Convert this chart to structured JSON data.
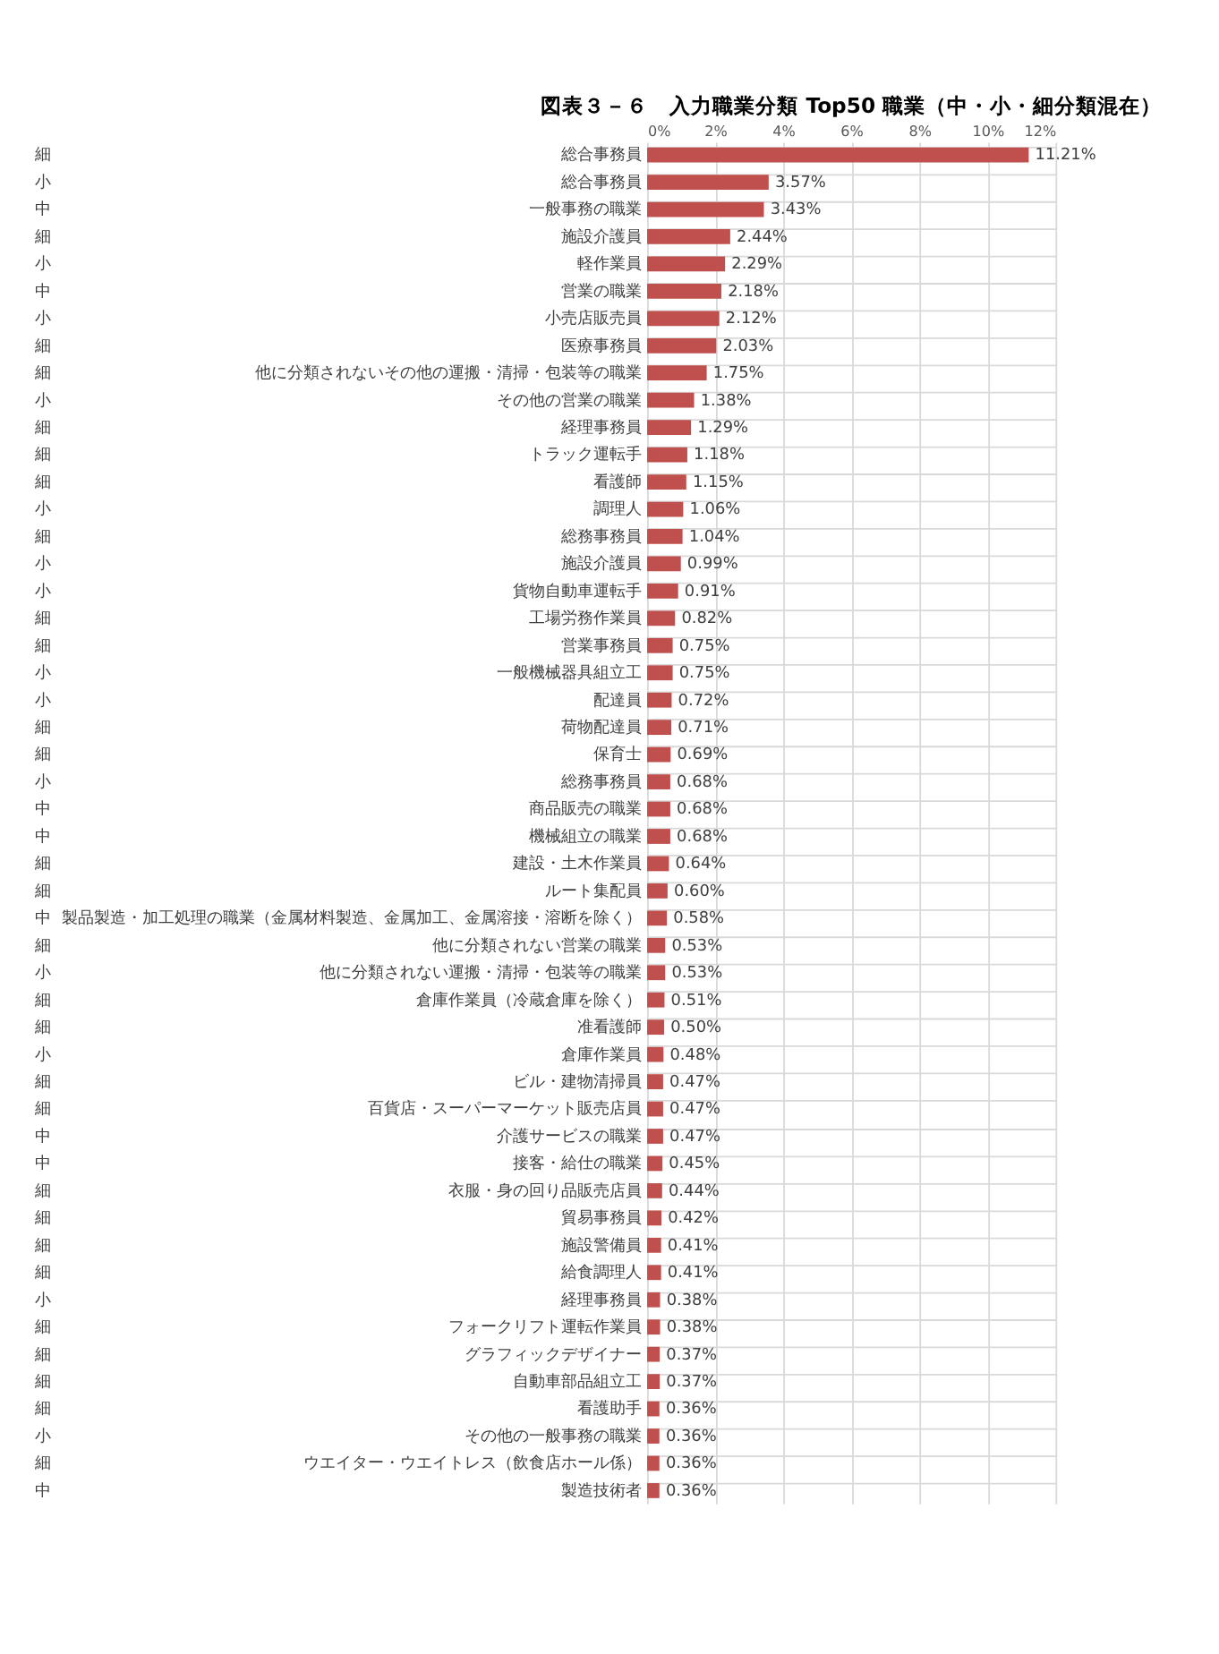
{
  "chart_data": {
    "type": "bar",
    "orientation": "horizontal",
    "title": "図表３－６　入力職業分類 Top50 職業（中・小・細分類混在）",
    "categories": [
      "総合事務員",
      "総合事務員",
      "一般事務の職業",
      "施設介護員",
      "軽作業員",
      "営業の職業",
      "小売店販売員",
      "医療事務員",
      "他に分類されないその他の運搬・清掃・包装等の職業",
      "その他の営業の職業",
      "経理事務員",
      "トラック運転手",
      "看護師",
      "調理人",
      "総務事務員",
      "施設介護員",
      "貨物自動車運転手",
      "工場労務作業員",
      "営業事務員",
      "一般機械器具組立工",
      "配達員",
      "荷物配達員",
      "保育士",
      "総務事務員",
      "商品販売の職業",
      "機械組立の職業",
      "建設・土木作業員",
      "ルート集配員",
      "製品製造・加工処理の職業（金属材料製造、金属加工、金属溶接・溶断を除く）",
      "他に分類されない営業の職業",
      "他に分類されない運搬・清掃・包装等の職業",
      "倉庫作業員（冷蔵倉庫を除く）",
      "准看護師",
      "倉庫作業員",
      "ビル・建物清掃員",
      "百貨店・スーパーマーケット販売店員",
      "介護サービスの職業",
      "接客・給仕の職業",
      "衣服・身の回り品販売店員",
      "貿易事務員",
      "施設警備員",
      "給食調理人",
      "経理事務員",
      "フォークリフト運転作業員",
      "グラフィックデザイナー",
      "自動車部品組立工",
      "看護助手",
      "その他の一般事務の職業",
      "ウエイター・ウエイトレス（飲食店ホール係）",
      "製造技術者"
    ],
    "y2_categories": [
      "細",
      "小",
      "中",
      "細",
      "小",
      "中",
      "小",
      "細",
      "細",
      "小",
      "細",
      "細",
      "細",
      "小",
      "細",
      "小",
      "小",
      "細",
      "細",
      "小",
      "小",
      "細",
      "細",
      "小",
      "中",
      "中",
      "細",
      "細",
      "中",
      "細",
      "小",
      "細",
      "細",
      "小",
      "細",
      "細",
      "中",
      "中",
      "細",
      "細",
      "細",
      "細",
      "小",
      "細",
      "細",
      "細",
      "細",
      "小",
      "細",
      "中"
    ],
    "values": [
      11.21,
      3.57,
      3.43,
      2.44,
      2.29,
      2.18,
      2.12,
      2.03,
      1.75,
      1.38,
      1.29,
      1.18,
      1.15,
      1.06,
      1.04,
      0.99,
      0.91,
      0.82,
      0.75,
      0.75,
      0.72,
      0.71,
      0.69,
      0.68,
      0.68,
      0.68,
      0.64,
      0.6,
      0.58,
      0.53,
      0.53,
      0.51,
      0.5,
      0.48,
      0.47,
      0.47,
      0.47,
      0.45,
      0.44,
      0.42,
      0.41,
      0.41,
      0.38,
      0.38,
      0.37,
      0.37,
      0.36,
      0.36,
      0.36,
      0.36
    ],
    "value_labels": [
      "11.21%",
      "3.57%",
      "3.43%",
      "2.44%",
      "2.29%",
      "2.18%",
      "2.12%",
      "2.03%",
      "1.75%",
      "1.38%",
      "1.29%",
      "1.18%",
      "1.15%",
      "1.06%",
      "1.04%",
      "0.99%",
      "0.91%",
      "0.82%",
      "0.75%",
      "0.75%",
      "0.72%",
      "0.71%",
      "0.69%",
      "0.68%",
      "0.68%",
      "0.68%",
      "0.64%",
      "0.60%",
      "0.58%",
      "0.53%",
      "0.53%",
      "0.51%",
      "0.50%",
      "0.48%",
      "0.47%",
      "0.47%",
      "0.47%",
      "0.45%",
      "0.44%",
      "0.42%",
      "0.41%",
      "0.41%",
      "0.38%",
      "0.38%",
      "0.37%",
      "0.37%",
      "0.36%",
      "0.36%",
      "0.36%",
      "0.36%"
    ],
    "color": "#c0504d",
    "xlim": [
      0,
      12
    ],
    "xticks": [
      {
        "value": 0,
        "label": "0%"
      },
      {
        "value": 2,
        "label": "2%"
      },
      {
        "value": 4,
        "label": "4%"
      },
      {
        "value": 6,
        "label": "6%"
      },
      {
        "value": 8,
        "label": "8%"
      },
      {
        "value": 10,
        "label": "10%"
      },
      {
        "value": 12,
        "label": "12%"
      }
    ],
    "grid": true
  }
}
